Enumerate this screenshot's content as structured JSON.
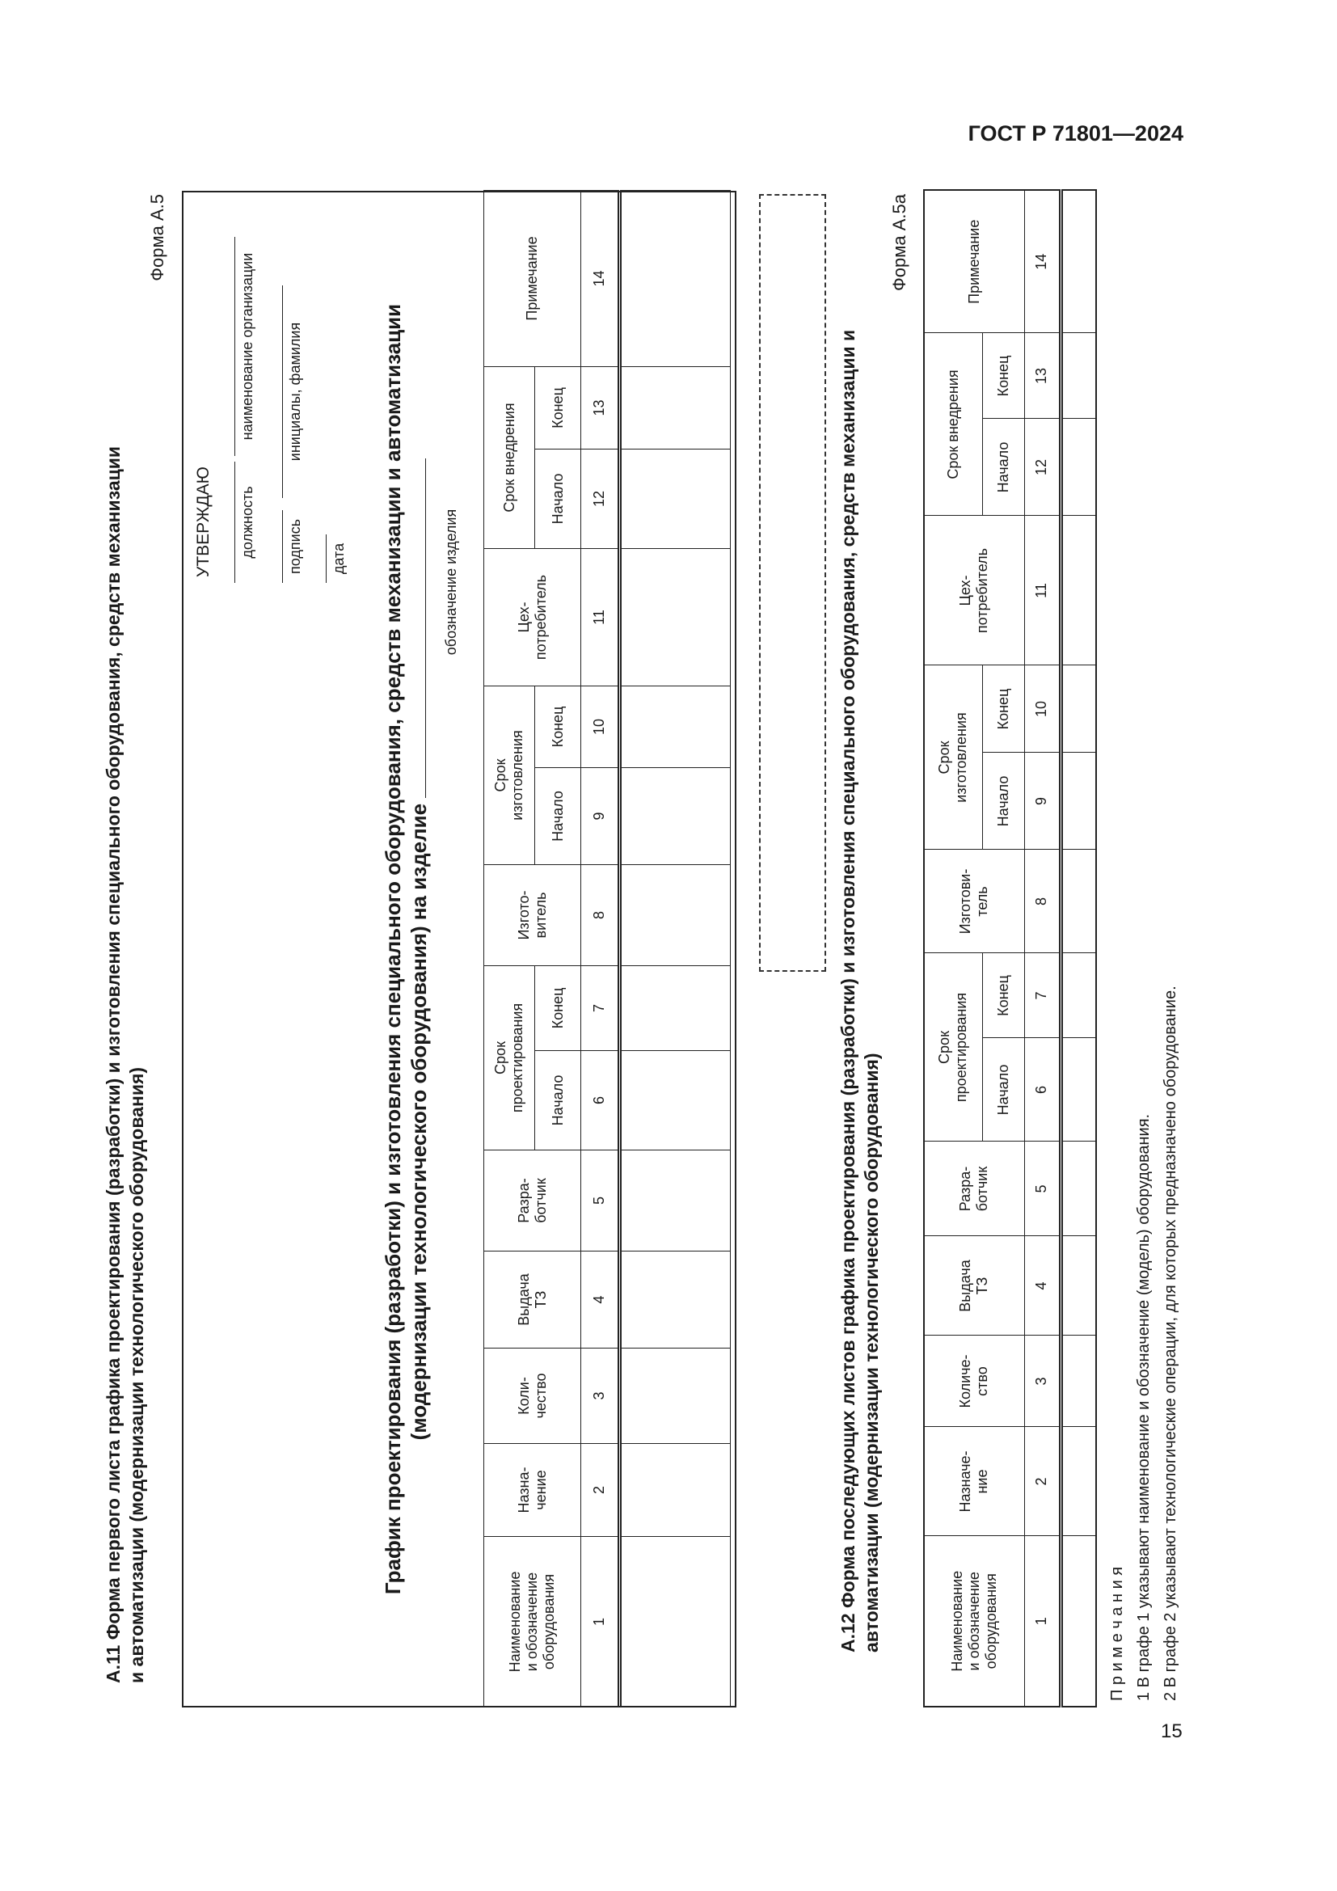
{
  "header": {
    "doc": "ГОСТ Р 71801—2024",
    "page": "15"
  },
  "a11": {
    "title_lines": [
      "А.11 Форма первого листа графика проектирования (разработки) и изготовления специального оборудования, средств механизации",
      "и автоматизации (модернизации технологического оборудования)"
    ],
    "form": "Форма А.5",
    "approve": {
      "title": "УТВЕРЖДАЮ",
      "position": "должность",
      "org": "наименование организации",
      "signature": "подпись",
      "name": "инициалы, фамилия",
      "date": "дата"
    },
    "schedule_title_1": "График проектирования (разработки) и изготовления специального оборудования, средств механизации и автоматизации",
    "schedule_title_2": "(модернизации технологического оборудования) на изделие",
    "product_label": "обозначение изделия"
  },
  "a12": {
    "title_lines": [
      "А.12 Форма последующих листов графика проектирования (разработки) и изготовления специального оборудования, средств механизации и",
      "автоматизации (модернизации технологического оборудования)"
    ],
    "form": "Форма А.5а"
  },
  "table1": {
    "columns": [
      {
        "label": "Наименование\nи обозначение\nоборудования"
      },
      {
        "label": "Назна-\nчение"
      },
      {
        "label": "Коли-\nчество"
      },
      {
        "label": "Выдача\nТЗ"
      },
      {
        "label": "Разра-\nботчик"
      },
      {
        "label": "Срок\nпроектирования",
        "sub": [
          "Начало",
          "Конец"
        ]
      },
      {
        "label": "Изгото-\nвитель"
      },
      {
        "label": "Срок\nизготовления",
        "sub": [
          "Начало",
          "Конец"
        ]
      },
      {
        "label": "Цех-\nпотребитель"
      },
      {
        "label": "Срок внедрения",
        "sub": [
          "Начало",
          "Конец"
        ]
      },
      {
        "label": "Примечание"
      }
    ],
    "numbers": [
      "1",
      "2",
      "3",
      "4",
      "5",
      "6",
      "7",
      "8",
      "9",
      "10",
      "11",
      "12",
      "13",
      "14"
    ]
  },
  "table2": {
    "columns": [
      {
        "label": "Наименование\nи обозначение\nоборудования"
      },
      {
        "label": "Назначе-\nние"
      },
      {
        "label": "Количе-\nство"
      },
      {
        "label": "Выдача\nТЗ"
      },
      {
        "label": "Разра-\nботчик"
      },
      {
        "label": "Срок\nпроектирования",
        "sub": [
          "Начало",
          "Конец"
        ]
      },
      {
        "label": "Изготови-\nтель"
      },
      {
        "label": "Срок\nизготовления",
        "sub": [
          "Начало",
          "Конец"
        ]
      },
      {
        "label": "Цех-\nпотребитель"
      },
      {
        "label": "Срок внедрения",
        "sub": [
          "Начало",
          "Конец"
        ]
      },
      {
        "label": "Примечание"
      }
    ],
    "numbers": [
      "1",
      "2",
      "3",
      "4",
      "5",
      "6",
      "7",
      "8",
      "9",
      "10",
      "11",
      "12",
      "13",
      "14"
    ]
  },
  "notes": {
    "title": "П р и м е ч а н и я",
    "items": [
      "1 В графе 1 указывают наименование и обозначение (модель) оборудования.",
      "2 В графе 2 указывают технологические операции, для которых предназначено оборудование."
    ]
  }
}
